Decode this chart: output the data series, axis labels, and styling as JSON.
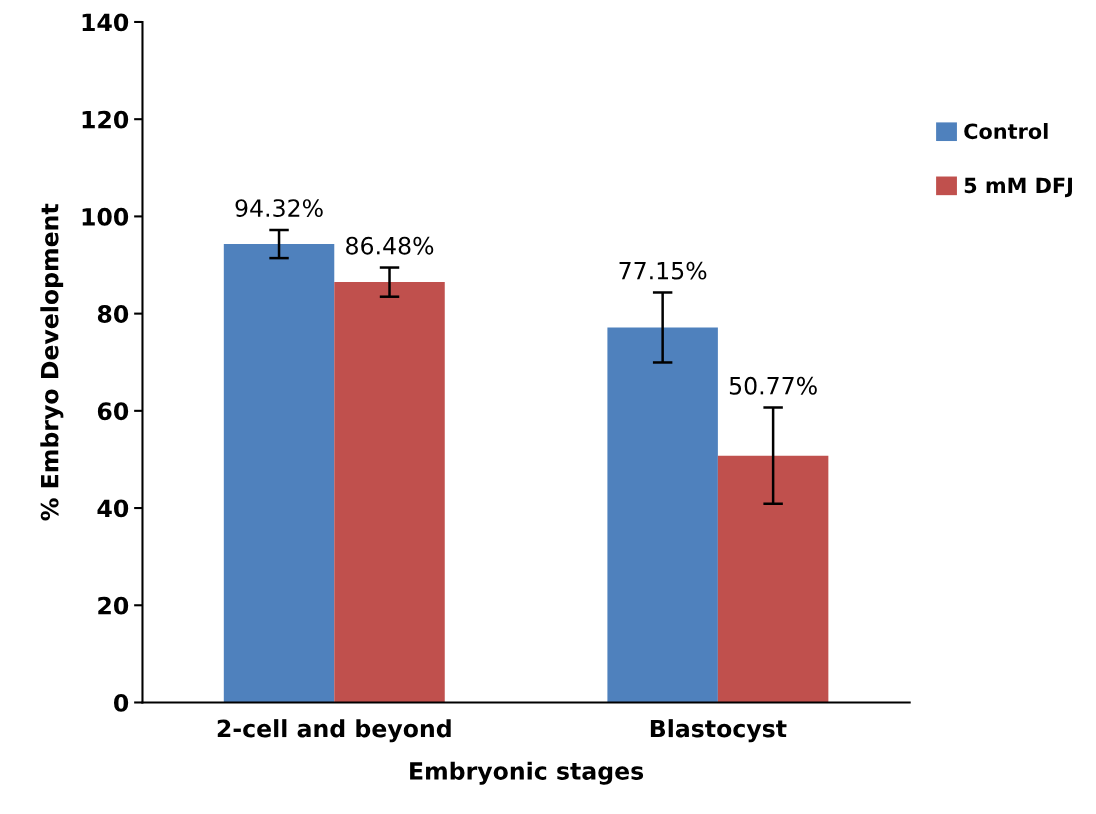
{
  "chart_data": {
    "type": "bar",
    "xlabel": "Embryonic stages",
    "ylabel": "% Embryo Development",
    "categories": [
      "2-cell and beyond",
      "Blastocyst"
    ],
    "series": [
      {
        "name": "Control",
        "color": "#4f81bd",
        "values": [
          94.32,
          77.15
        ],
        "errors": [
          2.9,
          7.2
        ],
        "value_labels": [
          "94.32%",
          "77.15%"
        ]
      },
      {
        "name": "5 mM DFJ",
        "color": "#c0504d",
        "values": [
          86.48,
          50.77
        ],
        "errors": [
          3.0,
          9.9
        ],
        "value_labels": [
          "86.48%",
          "50.77%"
        ]
      }
    ],
    "ylim": [
      0,
      140
    ],
    "yticks": [
      0,
      20,
      40,
      60,
      80,
      100,
      120,
      140
    ],
    "grid": false,
    "legend": "top right"
  }
}
